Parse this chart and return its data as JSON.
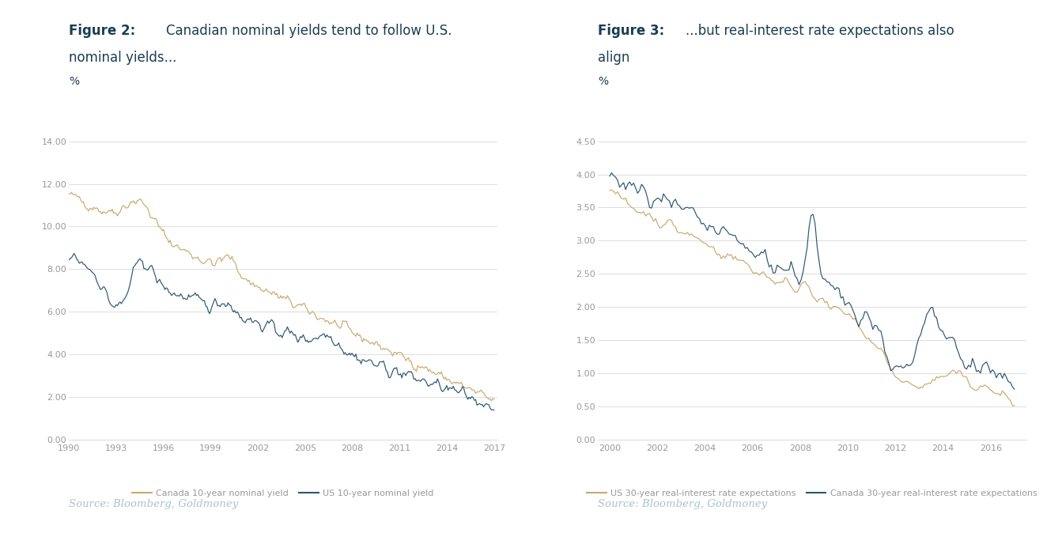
{
  "fig2_title_bold": "Figure 2:",
  "fig2_title_rest": "Canadian nominal yields tend to follow U.S.\nnominal yields...",
  "fig2_ylabel": "%",
  "fig2_ylim": [
    0,
    14.0
  ],
  "fig2_yticks": [
    0.0,
    2.0,
    4.0,
    6.0,
    8.0,
    10.0,
    12.0,
    14.0
  ],
  "fig2_xticks": [
    1990,
    1993,
    1996,
    1999,
    2002,
    2005,
    2008,
    2011,
    2014,
    2017
  ],
  "fig2_canada_color": "#C9A96E",
  "fig2_us_color": "#2B5670",
  "fig2_canada_label": "Canada 10-year nominal yield",
  "fig2_us_label": "US 10-year nominal yield",
  "fig2_source": "Source: Bloomberg, Goldmoney",
  "fig3_title_bold": "Figure 3:",
  "fig3_title_rest": "...but real-interest rate expectations also\nalign",
  "fig3_ylabel": "%",
  "fig3_ylim": [
    0,
    4.5
  ],
  "fig3_yticks": [
    0.0,
    0.5,
    1.0,
    1.5,
    2.0,
    2.5,
    3.0,
    3.5,
    4.0,
    4.5
  ],
  "fig3_xticks": [
    2000,
    2002,
    2004,
    2006,
    2008,
    2010,
    2012,
    2014,
    2016
  ],
  "fig3_us_color": "#C9A96E",
  "fig3_canada_color": "#2B5670",
  "fig3_us_label": "US 30-year real-interest rate expectations",
  "fig3_canada_label": "Canada 30-year real-interest rate expectations",
  "fig3_source": "Source: Bloomberg, Goldmoney",
  "bg_color": "#FFFFFF",
  "grid_color": "#DDDDDD",
  "tick_color": "#999999",
  "title_color": "#1A3E52",
  "source_color": "#A8C4CC"
}
